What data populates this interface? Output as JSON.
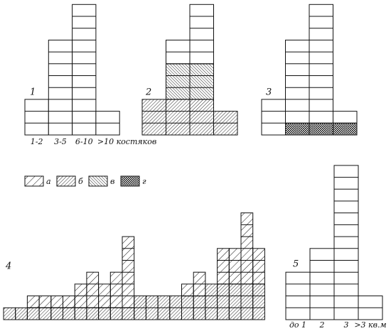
{
  "chart_data": {
    "type": "block-histogram",
    "legend": [
      {
        "label": "а",
        "pattern": "a"
      },
      {
        "label": "б",
        "pattern": "b"
      },
      {
        "label": "в",
        "pattern": "v"
      },
      {
        "label": "г",
        "pattern": "g"
      }
    ],
    "panels": [
      {
        "number": "1",
        "categories": [
          "1-2",
          "3-5",
          "6-10",
          ">10 костяков"
        ],
        "series": [
          {
            "pattern": "none",
            "values": [
              3,
              8,
              11,
              2
            ]
          }
        ]
      },
      {
        "number": "2",
        "categories": [
          null,
          null,
          null,
          null
        ],
        "series": [
          {
            "pattern": "b",
            "values": [
              3,
              3,
              3,
              2
            ]
          },
          {
            "pattern": "v",
            "values": [
              0,
              3,
              3,
              0
            ]
          },
          {
            "pattern": "none",
            "values": [
              0,
              2,
              5,
              0
            ]
          }
        ]
      },
      {
        "number": "3",
        "categories": [
          null,
          null,
          null,
          null
        ],
        "series": [
          {
            "pattern": "g",
            "values": [
              0,
              1,
              1,
              1
            ]
          },
          {
            "pattern": "none",
            "values": [
              3,
              7,
              10,
              1
            ]
          }
        ]
      },
      {
        "number": "4",
        "categories": [
          null,
          null,
          null,
          null,
          null,
          null,
          null,
          null,
          null,
          null,
          null,
          null,
          null,
          null,
          null,
          null,
          null,
          null,
          null,
          null,
          null,
          null
        ],
        "series": [
          {
            "pattern": "b",
            "values": [
              1,
              1,
              1,
              1,
              1,
              1,
              1,
              1,
              1,
              1,
              1,
              2,
              2,
              2,
              2,
              2,
              2,
              3,
              3,
              3,
              3,
              3
            ]
          },
          {
            "pattern": "a",
            "values": [
              0,
              0,
              1,
              1,
              1,
              1,
              2,
              3,
              2,
              3,
              6,
              0,
              0,
              0,
              0,
              1,
              2,
              0,
              3,
              3,
              6,
              3
            ]
          }
        ]
      },
      {
        "number": "5",
        "categories": [
          "до 1",
          "2",
          "3",
          ">3 кв.м"
        ],
        "series": [
          {
            "pattern": "none",
            "values": [
              4,
              6,
              13,
              2
            ]
          }
        ]
      }
    ]
  }
}
